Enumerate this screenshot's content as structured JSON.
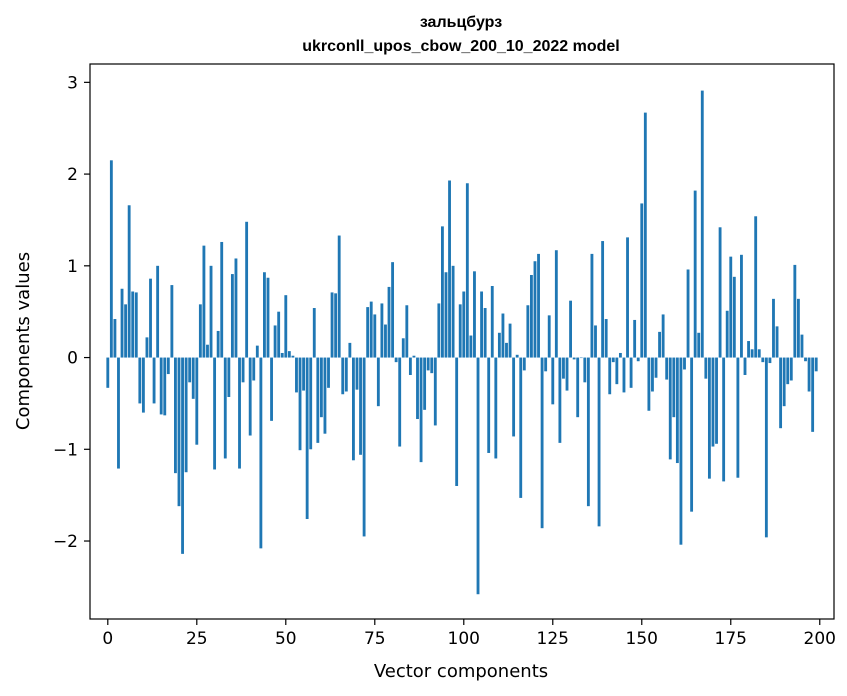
{
  "chart_data": {
    "type": "bar",
    "title": "зальцбурз",
    "subtitle": "ukrconll_upos_cbow_200_10_2022 model",
    "xlabel": "Vector components",
    "ylabel": "Components values",
    "xlim": [
      -5,
      204
    ],
    "ylim": [
      -2.85,
      3.2
    ],
    "xticks": [
      0,
      25,
      50,
      75,
      100,
      125,
      150,
      175,
      200
    ],
    "yticks": [
      -2,
      -1,
      0,
      1,
      2,
      3
    ],
    "xtick_labels": [
      "0",
      "25",
      "50",
      "75",
      "100",
      "125",
      "150",
      "175",
      "200"
    ],
    "ytick_labels": [
      "−2",
      "−1",
      "0",
      "1",
      "2",
      "3"
    ],
    "bar_color": "#1f77b4",
    "grid": false,
    "legend": "none",
    "values": [
      -0.33,
      2.15,
      0.42,
      -1.21,
      0.75,
      0.58,
      1.66,
      0.72,
      0.71,
      -0.5,
      -0.6,
      0.22,
      0.86,
      -0.5,
      1.0,
      -0.62,
      -0.63,
      -0.18,
      0.79,
      -1.26,
      -1.62,
      -2.14,
      -1.25,
      -0.27,
      -0.45,
      -0.95,
      0.58,
      1.22,
      0.14,
      1.0,
      -1.22,
      0.29,
      1.26,
      -1.1,
      -0.43,
      0.91,
      1.08,
      -1.21,
      -0.27,
      1.48,
      -0.85,
      -0.25,
      0.13,
      -2.08,
      0.93,
      0.87,
      -0.69,
      0.35,
      0.5,
      0.05,
      0.68,
      0.07,
      0.02,
      -0.38,
      -1.01,
      -0.36,
      -1.76,
      -1.0,
      0.54,
      -0.93,
      -0.65,
      -0.83,
      -0.33,
      0.71,
      0.7,
      1.33,
      -0.4,
      -0.37,
      0.16,
      -1.12,
      -0.35,
      -1.06,
      -1.95,
      0.55,
      0.61,
      0.47,
      -0.53,
      0.59,
      0.36,
      0.77,
      1.04,
      -0.05,
      -0.97,
      0.21,
      0.57,
      -0.19,
      0.02,
      -0.67,
      -1.14,
      -0.57,
      -0.14,
      -0.17,
      -0.74,
      0.59,
      1.43,
      0.93,
      1.93,
      1.0,
      -1.4,
      0.58,
      0.72,
      1.9,
      0.24,
      0.94,
      -2.58,
      0.72,
      0.54,
      -1.04,
      0.78,
      -1.1,
      0.27,
      0.48,
      0.16,
      0.37,
      -0.86,
      0.03,
      -1.53,
      -0.14,
      0.57,
      0.9,
      1.05,
      1.13,
      -1.86,
      -0.15,
      0.46,
      -0.51,
      1.17,
      -0.93,
      -0.23,
      -0.36,
      0.62,
      -0.02,
      -0.65,
      0.0,
      -0.27,
      -1.62,
      1.13,
      0.35,
      -1.84,
      1.27,
      0.42,
      -0.4,
      -0.05,
      -0.29,
      0.05,
      -0.38,
      1.31,
      -0.33,
      0.41,
      -0.04,
      1.68,
      2.67,
      -0.58,
      -0.37,
      -0.22,
      0.28,
      0.47,
      -0.24,
      -1.11,
      -0.65,
      -1.15,
      -2.04,
      -0.13,
      0.96,
      -1.68,
      1.82,
      0.27,
      2.91,
      -0.23,
      -1.32,
      -0.97,
      -0.94,
      1.42,
      -1.35,
      0.51,
      1.1,
      0.88,
      -1.31,
      1.12,
      -0.19,
      0.18,
      0.09,
      1.54,
      0.09,
      -0.05,
      -1.96,
      -0.06,
      0.64,
      0.34,
      -0.77,
      -0.53,
      -0.29,
      -0.25,
      1.01,
      0.64,
      0.25,
      -0.04,
      -0.37,
      -0.81,
      -0.15
    ]
  }
}
